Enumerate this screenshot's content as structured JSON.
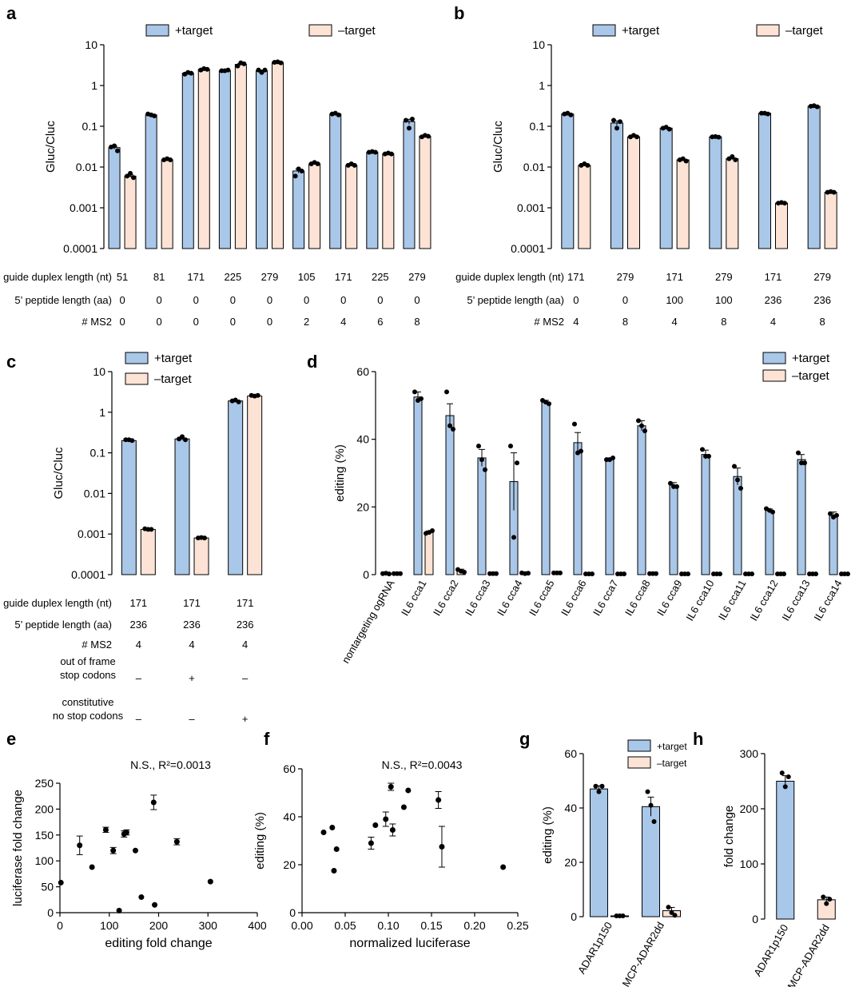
{
  "colors": {
    "plus": "#a9c7e8",
    "minus": "#fde3d5",
    "stroke": "#000000"
  },
  "chart_data": [
    {
      "id": "a",
      "panel_label": "a",
      "type": "bar",
      "scale": "log",
      "ylabel": "Gluc/Cluc",
      "ylim": [
        0.0001,
        10
      ],
      "yticks": [
        "0.0001",
        "0.001",
        "0.01",
        "0.1",
        "1",
        "10"
      ],
      "legend": [
        "+target",
        "–target"
      ],
      "series": [
        {
          "name": "+target",
          "values": [
            0.03,
            0.19,
            2.0,
            2.3,
            2.3,
            0.008,
            0.2,
            0.023,
            0.13
          ],
          "points": [
            [
              0.031,
              0.033,
              0.025
            ],
            [
              0.2,
              0.19,
              0.18
            ],
            [
              1.9,
              2.1,
              2.0
            ],
            [
              2.3,
              2.3,
              2.4
            ],
            [
              2.4,
              2.1,
              2.4
            ],
            [
              0.006,
              0.009,
              0.008
            ],
            [
              0.2,
              0.21,
              0.19
            ],
            [
              0.023,
              0.024,
              0.023
            ],
            [
              0.14,
              0.09,
              0.15
            ]
          ]
        },
        {
          "name": "–target",
          "values": [
            0.006,
            0.015,
            2.5,
            3.3,
            3.7,
            0.012,
            0.011,
            0.021,
            0.057
          ],
          "points": [
            [
              0.006,
              0.007,
              0.0055
            ],
            [
              0.015,
              0.016,
              0.015
            ],
            [
              2.4,
              2.6,
              2.5
            ],
            [
              3.0,
              3.6,
              3.4
            ],
            [
              3.7,
              3.8,
              3.6
            ],
            [
              0.012,
              0.013,
              0.012
            ],
            [
              0.011,
              0.012,
              0.011
            ],
            [
              0.021,
              0.022,
              0.021
            ],
            [
              0.055,
              0.06,
              0.057
            ]
          ]
        }
      ],
      "rows": [
        {
          "label": "guide duplex length (nt)",
          "values": [
            "51",
            "81",
            "171",
            "225",
            "279",
            "105",
            "171",
            "225",
            "279"
          ]
        },
        {
          "label": "5’ peptide length (aa)",
          "values": [
            "0",
            "0",
            "0",
            "0",
            "0",
            "0",
            "0",
            "0",
            "0"
          ]
        },
        {
          "label": "# MS2",
          "values": [
            "0",
            "0",
            "0",
            "0",
            "0",
            "2",
            "4",
            "6",
            "8"
          ]
        }
      ]
    },
    {
      "id": "b",
      "panel_label": "b",
      "type": "bar",
      "scale": "log",
      "ylabel": "Gluc/Cluc",
      "ylim": [
        0.0001,
        10
      ],
      "yticks": [
        "0.0001",
        "0.001",
        "0.01",
        "0.1",
        "1",
        "10"
      ],
      "legend": [
        "+target",
        "–target"
      ],
      "series": [
        {
          "name": "+target",
          "values": [
            0.2,
            0.12,
            0.09,
            0.055,
            0.21,
            0.31
          ],
          "points": [
            [
              0.2,
              0.21,
              0.19
            ],
            [
              0.14,
              0.09,
              0.13
            ],
            [
              0.09,
              0.095,
              0.085
            ],
            [
              0.055,
              0.056,
              0.054
            ],
            [
              0.21,
              0.21,
              0.2
            ],
            [
              0.31,
              0.32,
              0.3
            ]
          ]
        },
        {
          "name": "–target",
          "values": [
            0.011,
            0.055,
            0.015,
            0.016,
            0.0013,
            0.0024
          ],
          "points": [
            [
              0.011,
              0.012,
              0.011
            ],
            [
              0.055,
              0.06,
              0.055
            ],
            [
              0.015,
              0.016,
              0.014
            ],
            [
              0.016,
              0.018,
              0.015
            ],
            [
              0.0013,
              0.00135,
              0.0013
            ],
            [
              0.0024,
              0.0025,
              0.0024
            ]
          ]
        }
      ],
      "rows": [
        {
          "label": "guide duplex length (nt)",
          "values": [
            "171",
            "279",
            "171",
            "279",
            "171",
            "279"
          ]
        },
        {
          "label": "5’ peptide length (aa)",
          "values": [
            "0",
            "0",
            "100",
            "100",
            "236",
            "236"
          ]
        },
        {
          "label": "# MS2",
          "values": [
            "4",
            "8",
            "4",
            "8",
            "4",
            "8"
          ]
        }
      ]
    },
    {
      "id": "c",
      "panel_label": "c",
      "type": "bar",
      "scale": "log",
      "ylabel": "Gluc/Cluc",
      "ylim": [
        0.0001,
        10
      ],
      "yticks": [
        "0.0001",
        "0.001",
        "0.01",
        "0.1",
        "1",
        "10"
      ],
      "legend": [
        "+target",
        "–target"
      ],
      "series": [
        {
          "name": "+target",
          "values": [
            0.2,
            0.22,
            1.9
          ],
          "points": [
            [
              0.21,
              0.21,
              0.2
            ],
            [
              0.22,
              0.25,
              0.21
            ],
            [
              1.9,
              2.0,
              1.8
            ]
          ]
        },
        {
          "name": "–target",
          "values": [
            0.0013,
            0.0008,
            2.5
          ],
          "points": [
            [
              0.00135,
              0.0013,
              0.0013
            ],
            [
              0.0008,
              0.00082,
              0.0008
            ],
            [
              2.6,
              2.5,
              2.6
            ]
          ]
        }
      ],
      "rows": [
        {
          "label": "guide duplex length (nt)",
          "values": [
            "171",
            "171",
            "171"
          ]
        },
        {
          "label": "5’ peptide length (aa)",
          "values": [
            "236",
            "236",
            "236"
          ]
        },
        {
          "label": "# MS2",
          "values": [
            "4",
            "4",
            "4"
          ]
        },
        {
          "label": "out of frame\nstop codons",
          "values": [
            "–",
            "+",
            "–"
          ]
        },
        {
          "label": "constitutive\nno stop codons",
          "values": [
            "–",
            "–",
            "+"
          ]
        }
      ]
    },
    {
      "id": "d",
      "panel_label": "d",
      "type": "bar",
      "scale": "linear",
      "ylabel": "editing (%)",
      "ylim": [
        0,
        60
      ],
      "yticks": [
        "0",
        "20",
        "40",
        "60"
      ],
      "legend": [
        "+target",
        "–target"
      ],
      "categories": [
        "nontargeting ogRNA",
        "IL6 cca1",
        "IL6 cca2",
        "IL6 cca3",
        "IL6 cca4",
        "IL6 cca5",
        "IL6 cca6",
        "IL6 cca7",
        "IL6 cca8",
        "IL6 cca9",
        "IL6 cca10",
        "IL6 cca11",
        "IL6 cca12",
        "IL6 cca13",
        "IL6 cca14"
      ],
      "series": [
        {
          "name": "+target",
          "values": [
            0.3,
            52.5,
            47,
            34.5,
            27.5,
            51,
            39,
            34,
            44,
            26.5,
            35.5,
            29,
            19,
            34,
            17.5
          ],
          "errors": [
            0.1,
            1.5,
            3.5,
            2.5,
            8.5,
            0.5,
            3,
            0.5,
            1.5,
            0.7,
            1.3,
            2.5,
            0.4,
            1.5,
            1
          ],
          "points": [
            [
              0.3,
              0.4,
              0.2
            ],
            [
              54,
              51.5,
              52
            ],
            [
              54,
              44,
              43
            ],
            [
              38,
              34,
              31
            ],
            [
              38,
              11,
              33
            ],
            [
              51.5,
              51,
              50.5
            ],
            [
              44.5,
              36,
              36.5
            ],
            [
              34,
              34,
              34.5
            ],
            [
              45.5,
              44,
              42.5
            ],
            [
              27,
              26,
              26
            ],
            [
              37,
              35,
              35
            ],
            [
              32,
              28,
              25.5
            ],
            [
              19.5,
              19,
              18.5
            ],
            [
              36,
              33,
              33
            ],
            [
              18,
              17,
              17.5
            ]
          ]
        },
        {
          "name": "–target",
          "values": [
            0.3,
            12.5,
            1.2,
            0.3,
            0.4,
            0.5,
            0.2,
            0.2,
            0.3,
            0.2,
            0.2,
            0.2,
            0.2,
            0.2,
            0.2
          ],
          "errors": [
            0.1,
            0.4,
            0.4,
            0.1,
            0.3,
            0.1,
            0.1,
            0.1,
            0.1,
            0.1,
            0.1,
            0.1,
            0.1,
            0.1,
            0.1
          ],
          "points": [
            [
              0.3,
              0.3,
              0.3
            ],
            [
              12.2,
              12.5,
              13
            ],
            [
              1.5,
              1,
              0.7
            ],
            [
              0.3,
              0.3,
              0.3
            ],
            [
              0.5,
              0.3,
              0.4
            ],
            [
              0.5,
              0.5,
              0.5
            ],
            [
              0.2,
              0.2,
              0.2
            ],
            [
              0.2,
              0.2,
              0.2
            ],
            [
              0.3,
              0.3,
              0.3
            ],
            [
              0.2,
              0.2,
              0.2
            ],
            [
              0.2,
              0.2,
              0.2
            ],
            [
              0.2,
              0.2,
              0.2
            ],
            [
              0.2,
              0.2,
              0.2
            ],
            [
              0.2,
              0.2,
              0.2
            ],
            [
              0.2,
              0.2,
              0.2
            ]
          ]
        }
      ]
    },
    {
      "id": "e",
      "panel_label": "e",
      "type": "scatter",
      "title": "N.S., R²=0.0013",
      "xlabel": "editing fold change",
      "ylabel": "luciferase fold change",
      "xlim": [
        0,
        400
      ],
      "ylim": [
        0,
        250
      ],
      "xticks": [
        "0",
        "100",
        "200",
        "300",
        "400"
      ],
      "yticks": [
        "0",
        "50",
        "100",
        "150",
        "200",
        "250"
      ],
      "points": [
        {
          "x": 2,
          "y": 58,
          "err": 0
        },
        {
          "x": 40,
          "y": 130,
          "err": 18
        },
        {
          "x": 65,
          "y": 88,
          "err": 0
        },
        {
          "x": 93,
          "y": 160,
          "err": 5
        },
        {
          "x": 108,
          "y": 120,
          "err": 6
        },
        {
          "x": 120,
          "y": 4,
          "err": 0
        },
        {
          "x": 130,
          "y": 152,
          "err": 6
        },
        {
          "x": 135,
          "y": 155,
          "err": 5
        },
        {
          "x": 153,
          "y": 120,
          "err": 0
        },
        {
          "x": 165,
          "y": 30,
          "err": 0
        },
        {
          "x": 190,
          "y": 213,
          "err": 14
        },
        {
          "x": 192,
          "y": 15,
          "err": 0
        },
        {
          "x": 237,
          "y": 137,
          "err": 6
        },
        {
          "x": 305,
          "y": 60,
          "err": 0
        }
      ]
    },
    {
      "id": "f",
      "panel_label": "f",
      "type": "scatter",
      "title": "N.S., R²=0.0043",
      "xlabel": "normalized luciferase",
      "ylabel": "editing (%)",
      "xlim": [
        0,
        0.25
      ],
      "ylim": [
        0,
        60
      ],
      "xticks": [
        "0.00",
        "0.05",
        "0.10",
        "0.15",
        "0.20",
        "0.25"
      ],
      "yticks": [
        "0",
        "20",
        "40",
        "60"
      ],
      "points": [
        {
          "x": 0.025,
          "y": 33.5,
          "err": 0
        },
        {
          "x": 0.035,
          "y": 35.5,
          "err": 0
        },
        {
          "x": 0.037,
          "y": 17.5,
          "err": 0
        },
        {
          "x": 0.04,
          "y": 26.5,
          "err": 0
        },
        {
          "x": 0.08,
          "y": 29,
          "err": 2.5
        },
        {
          "x": 0.085,
          "y": 36.5,
          "err": 0
        },
        {
          "x": 0.097,
          "y": 39,
          "err": 3
        },
        {
          "x": 0.103,
          "y": 52.5,
          "err": 1.5
        },
        {
          "x": 0.105,
          "y": 34.5,
          "err": 2.5
        },
        {
          "x": 0.118,
          "y": 44,
          "err": 0
        },
        {
          "x": 0.123,
          "y": 51,
          "err": 0
        },
        {
          "x": 0.158,
          "y": 47,
          "err": 3.5
        },
        {
          "x": 0.162,
          "y": 27.5,
          "err": 8.5
        },
        {
          "x": 0.233,
          "y": 19,
          "err": 0
        }
      ]
    },
    {
      "id": "g",
      "panel_label": "g",
      "type": "bar",
      "scale": "linear",
      "ylabel": "editing (%)",
      "ylim": [
        0,
        60
      ],
      "yticks": [
        "0",
        "20",
        "40",
        "60"
      ],
      "legend": [
        "+target",
        "–target"
      ],
      "categories": [
        "ADAR1p150",
        "MCP-ADAR2dd"
      ],
      "series": [
        {
          "name": "+target",
          "values": [
            47,
            40.5
          ],
          "errors": [
            1.2,
            3.5
          ],
          "points": [
            [
              48,
              46,
              48
            ],
            [
              46,
              41,
              35
            ]
          ]
        },
        {
          "name": "–target",
          "values": [
            0.3,
            2.2
          ],
          "errors": [
            0.1,
            1.2
          ],
          "points": [
            [
              0.3,
              0.3,
              0.3
            ],
            [
              3.5,
              1.5,
              0.5
            ]
          ]
        }
      ]
    },
    {
      "id": "h",
      "panel_label": "h",
      "type": "bar",
      "scale": "linear",
      "ylabel": "fold change",
      "ylim": [
        0,
        300
      ],
      "yticks": [
        "0",
        "100",
        "200",
        "300"
      ],
      "categories": [
        "ADAR1p150",
        "MCP-ADAR2dd"
      ],
      "series": [
        {
          "name": "fold change",
          "values": [
            250,
            35
          ],
          "errors": [
            10,
            5
          ],
          "points": [
            [
              265,
              240,
              258
            ],
            [
              40,
              28,
              36
            ]
          ],
          "colors": [
            "#a9c7e8",
            "#fde3d5"
          ]
        }
      ]
    }
  ]
}
